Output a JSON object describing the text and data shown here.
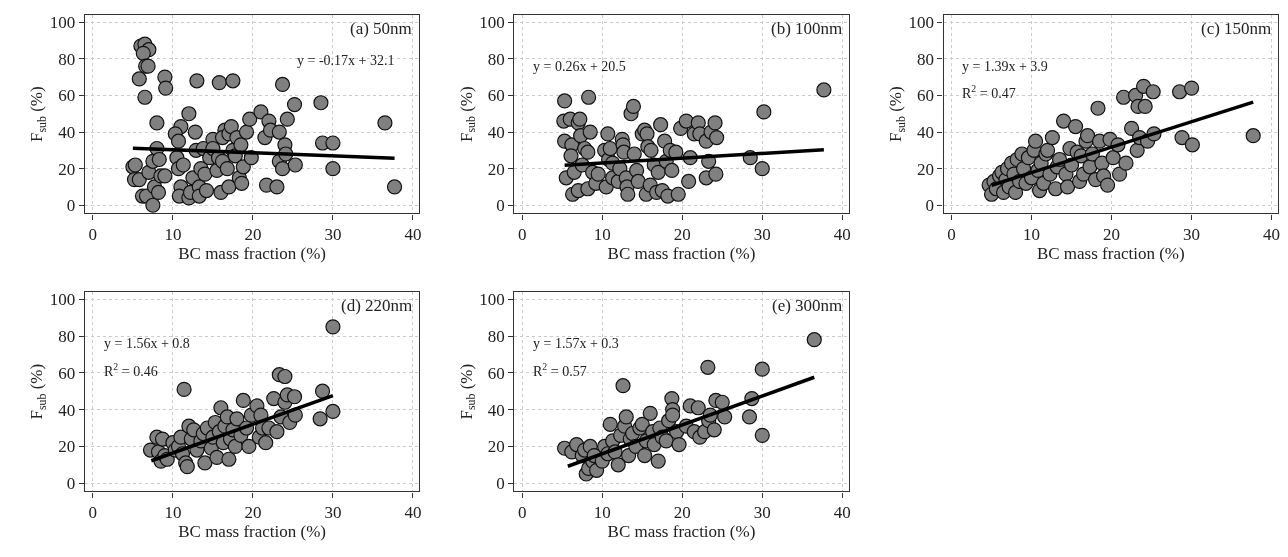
{
  "chart_data": [
    {
      "type": "scatter",
      "xlabel": "BC mass fraction (%)",
      "ylabel": "F$_{sub}$ (%)",
      "xlim": [
        -1,
        40.8
      ],
      "ylim": [
        -4.5,
        104
      ],
      "xticks": [
        0,
        10,
        20,
        30,
        40
      ],
      "yticks": [
        0,
        20,
        40,
        60,
        80,
        100
      ],
      "grid": true,
      "annotations": [
        "(a) 50nm",
        "y = -0.17x + 32.1"
      ],
      "series": [
        {
          "marker": "circle",
          "color": "#808080",
          "x": [
            6,
            6.5,
            7,
            6.3,
            6.6,
            6.9,
            5.8,
            6.5,
            9,
            9.1,
            13,
            15.8,
            17.5,
            23.7,
            8,
            12,
            11,
            5,
            5.3,
            5.2,
            5.8,
            6.2,
            6.7,
            7.5,
            7,
            7.5,
            8,
            8.3,
            7.7,
            8.2,
            8.5,
            9,
            10.3,
            10.7,
            10.5,
            10.7,
            11,
            10.8,
            11.3,
            12,
            12.2,
            12.5,
            12.8,
            12.9,
            13.3,
            13.3,
            13.5,
            13.8,
            14,
            14.2,
            14.6,
            15,
            15,
            15.5,
            15.7,
            16,
            16.2,
            16.5,
            16.2,
            16.8,
            17,
            17.3,
            17,
            17.5,
            17.8,
            18,
            18.3,
            18.5,
            18.8,
            18.6,
            19.2,
            19.6,
            19.8,
            21,
            21.5,
            21.7,
            22,
            22.2,
            23,
            23.3,
            23.3,
            23.7,
            24,
            24.1,
            24.3,
            25.2,
            25.3,
            28.5,
            28.7,
            30,
            30,
            36.5,
            37.7
          ],
          "values": [
            87,
            88,
            85,
            83,
            76,
            76,
            69,
            59,
            70,
            64,
            68,
            67,
            68,
            66,
            45,
            50,
            43,
            21,
            22,
            14,
            14,
            5,
            5,
            0,
            18,
            24,
            31,
            25,
            10,
            7,
            16,
            16,
            39,
            35,
            26,
            20,
            10,
            5,
            22,
            4,
            7,
            15,
            40,
            30,
            10,
            5,
            20,
            31,
            17,
            8,
            26,
            36,
            31,
            19,
            26,
            7,
            24,
            41,
            37,
            20,
            39,
            43,
            10,
            30,
            27,
            37,
            15,
            33,
            21,
            12,
            40,
            47,
            26,
            51,
            37,
            11,
            46,
            41,
            10,
            40,
            24,
            20,
            33,
            28,
            47,
            55,
            22,
            56,
            34,
            34,
            20,
            45,
            10
          ]
        },
        {
          "type": "line",
          "marker": "none",
          "color": "#000000",
          "x": [
            5,
            37.7
          ],
          "values": [
            31.2,
            25.7
          ]
        }
      ]
    },
    {
      "type": "scatter",
      "xlabel": "BC mass fraction (%)",
      "ylabel": "F$_{sub}$ (%)",
      "xlim": [
        -1,
        40.8
      ],
      "ylim": [
        -4.5,
        104
      ],
      "xticks": [
        0,
        10,
        20,
        30,
        40
      ],
      "yticks": [
        0,
        20,
        40,
        60,
        80,
        100
      ],
      "grid": true,
      "annotations": [
        "(b) 100nm",
        "y = 0.26x + 20.5"
      ],
      "series": [
        {
          "marker": "circle",
          "color": "#808080",
          "x": [
            5.3,
            5.2,
            5.3,
            5.5,
            6,
            6.2,
            6.1,
            6.3,
            6.5,
            7,
            7.2,
            7.3,
            7,
            7.5,
            7.8,
            8.2,
            8.3,
            8.5,
            8.2,
            8.8,
            9.2,
            9.5,
            10.3,
            10.5,
            10.7,
            10.8,
            11,
            11.3,
            11.3,
            12,
            12.2,
            12.5,
            12.6,
            12.7,
            13,
            13.1,
            13.2,
            13.6,
            13.9,
            14,
            14.3,
            14.5,
            15,
            15.3,
            15.5,
            15.6,
            15.7,
            16,
            16.1,
            16.5,
            16.8,
            17,
            17.3,
            17.5,
            17.8,
            18,
            18.2,
            18.5,
            18.7,
            19.2,
            19.5,
            19.8,
            20.5,
            20.8,
            21,
            21.5,
            22,
            22.2,
            23,
            23,
            23.3,
            23.6,
            24.1,
            24.2,
            24.3,
            28.5,
            30,
            30.2,
            37.7
          ],
          "values": [
            57,
            46,
            35,
            15,
            47,
            33,
            27,
            6,
            18,
            45,
            47,
            38,
            8,
            22,
            31,
            29,
            59,
            40,
            9,
            18,
            12,
            17,
            30,
            10,
            39,
            25,
            31,
            23,
            15,
            13,
            20,
            36,
            33,
            29,
            15,
            10,
            6,
            50,
            54,
            28,
            19,
            13,
            39,
            41,
            6,
            39,
            32,
            11,
            30,
            22,
            7,
            18,
            44,
            8,
            35,
            24,
            5,
            30,
            19,
            29,
            6,
            42,
            46,
            13,
            26,
            39,
            45,
            39,
            15,
            35,
            24,
            40,
            45,
            17,
            37,
            26,
            20,
            51,
            63
          ]
        },
        {
          "type": "line",
          "marker": "none",
          "color": "#000000",
          "x": [
            5.3,
            37.7
          ],
          "values": [
            21.9,
            30.3
          ]
        }
      ]
    },
    {
      "type": "scatter",
      "xlabel": "BC mass fraction (%)",
      "ylabel": "F$_{sub}$ (%)",
      "xlim": [
        -1,
        40.8
      ],
      "ylim": [
        -4.5,
        104
      ],
      "xticks": [
        0,
        10,
        20,
        30,
        40
      ],
      "yticks": [
        0,
        20,
        40,
        60,
        80,
        100
      ],
      "grid": true,
      "annotations": [
        "(c) 150nm",
        "y = 1.39x + 3.9",
        "R$^{2}$ = 0.47"
      ],
      "series": [
        {
          "marker": "circle",
          "color": "#808080",
          "x": [
            4.7,
            5,
            5.3,
            5.6,
            6,
            6.3,
            6.5,
            6.8,
            7,
            7.2,
            7.5,
            7.8,
            8,
            8.2,
            8.5,
            8.8,
            9,
            9.3,
            9.6,
            10,
            10.3,
            10.5,
            10.8,
            11,
            11.2,
            11.5,
            11.8,
            12,
            12.3,
            12.6,
            13,
            13.2,
            13.5,
            14,
            14.3,
            14.5,
            14.8,
            15,
            15.5,
            15.7,
            16,
            16.2,
            16.5,
            16.8,
            17,
            17.3,
            17.6,
            18,
            18.3,
            18.5,
            18.8,
            19,
            19.5,
            19.8,
            20.2,
            20.8,
            21,
            21.5,
            21.8,
            22.5,
            23,
            23.2,
            23.3,
            23.5,
            24,
            24.2,
            24.5,
            25.2,
            25.3,
            28.5,
            28.8,
            30,
            30.1,
            37.7
          ],
          "values": [
            11,
            6,
            13,
            9,
            16,
            18,
            7,
            14,
            20,
            10,
            23,
            17,
            7,
            25,
            13,
            28,
            20,
            12,
            26,
            15,
            30,
            35,
            19,
            8,
            23,
            12,
            28,
            30,
            17,
            37,
            9,
            21,
            25,
            46,
            17,
            10,
            31,
            22,
            43,
            29,
            13,
            27,
            17,
            35,
            38,
            21,
            28,
            14,
            53,
            35,
            23,
            16,
            11,
            36,
            26,
            33,
            17,
            59,
            23,
            42,
            60,
            30,
            54,
            37,
            65,
            54,
            35,
            62,
            39,
            62,
            37,
            64,
            33,
            38
          ]
        },
        {
          "type": "line",
          "marker": "none",
          "color": "#000000",
          "x": [
            5,
            37.7
          ],
          "values": [
            10.9,
            56.3
          ]
        }
      ]
    },
    {
      "type": "scatter",
      "xlabel": "BC mass fraction (%)",
      "ylabel": "F$_{sub}$ (%)",
      "xlim": [
        -1,
        40.8
      ],
      "ylim": [
        -4.5,
        104
      ],
      "xticks": [
        0,
        10,
        20,
        30,
        40
      ],
      "yticks": [
        0,
        20,
        40,
        60,
        80,
        100
      ],
      "grid": true,
      "annotations": [
        "(d) 220nm",
        "y = 1.56x + 0.8",
        "R$^{2}$ = 0.46"
      ],
      "series": [
        {
          "marker": "circle",
          "color": "#808080",
          "x": [
            7.2,
            8,
            8.2,
            8.5,
            8.7,
            9,
            9.3,
            10,
            10.3,
            10.7,
            11,
            11.2,
            11.4,
            11.6,
            11.8,
            12,
            12.3,
            12.6,
            13,
            13.5,
            13.8,
            14,
            14.3,
            14.8,
            15,
            15.3,
            15.5,
            15.8,
            16,
            16.3,
            16.5,
            16.8,
            17,
            17.2,
            17.5,
            17.8,
            18,
            18.5,
            18.8,
            19.2,
            19.5,
            19.8,
            20.5,
            20.8,
            21,
            21.2,
            21.6,
            22,
            22.6,
            23,
            23.3,
            23.5,
            24,
            24,
            24.3,
            24.6,
            25.2,
            25.3,
            28.4,
            28.7,
            30,
            30
          ],
          "values": [
            18,
            25,
            17,
            12,
            24,
            15,
            13,
            22,
            18,
            20,
            25,
            16,
            51,
            11,
            9,
            31,
            24,
            29,
            18,
            23,
            27,
            11,
            30,
            19,
            25,
            33,
            14,
            28,
            41,
            22,
            31,
            36,
            13,
            24,
            29,
            20,
            35,
            26,
            45,
            30,
            20,
            37,
            42,
            25,
            37,
            30,
            22,
            30,
            46,
            28,
            59,
            36,
            58,
            44,
            48,
            33,
            47,
            37,
            35,
            50,
            85,
            39
          ]
        },
        {
          "type": "line",
          "marker": "none",
          "color": "#000000",
          "x": [
            7.3,
            30
          ],
          "values": [
            12.2,
            47.6
          ]
        }
      ]
    },
    {
      "type": "scatter",
      "xlabel": "BC mass fraction (%)",
      "ylabel": "F$_{sub}$ (%)",
      "xlim": [
        -1,
        40.8
      ],
      "ylim": [
        -4.5,
        104
      ],
      "xticks": [
        0,
        10,
        20,
        30,
        40
      ],
      "yticks": [
        0,
        20,
        40,
        60,
        80,
        100
      ],
      "grid": true,
      "annotations": [
        "(e) 300nm",
        "y = 1.57x + 0.3",
        "R$^{2}$ = 0.57"
      ],
      "series": [
        {
          "marker": "circle",
          "color": "#808080",
          "x": [
            5.3,
            6.2,
            6.8,
            7.5,
            7.8,
            8,
            8.3,
            8.5,
            8.8,
            9,
            9.3,
            10,
            10.3,
            10.7,
            11,
            11.3,
            11.6,
            12,
            12.3,
            12.6,
            12.8,
            13,
            13.3,
            13.5,
            13.8,
            14.2,
            14.7,
            15,
            15.3,
            15.5,
            16,
            16.3,
            16.5,
            17,
            17.2,
            17.5,
            18,
            18.3,
            18.7,
            18.8,
            18.8,
            19.3,
            19.6,
            20.5,
            21,
            21.5,
            22,
            22.2,
            22.8,
            23.2,
            23.3,
            23.5,
            24,
            24.2,
            25,
            25.3,
            28.4,
            28.7,
            30,
            30,
            36.5
          ],
          "values": [
            19,
            17,
            21,
            15,
            18,
            5,
            8,
            20,
            12,
            15,
            7,
            12,
            20,
            16,
            32,
            23,
            17,
            10,
            26,
            53,
            31,
            36,
            15,
            24,
            27,
            20,
            30,
            32,
            15,
            23,
            38,
            28,
            21,
            12,
            30,
            25,
            23,
            34,
            46,
            40,
            37,
            28,
            21,
            31,
            42,
            28,
            41,
            25,
            28,
            63,
            34,
            37,
            29,
            45,
            44,
            36,
            36,
            46,
            62,
            26,
            78
          ]
        },
        {
          "type": "line",
          "marker": "none",
          "color": "#000000",
          "x": [
            5.7,
            36.5
          ],
          "values": [
            9.2,
            57.6
          ]
        }
      ]
    }
  ]
}
